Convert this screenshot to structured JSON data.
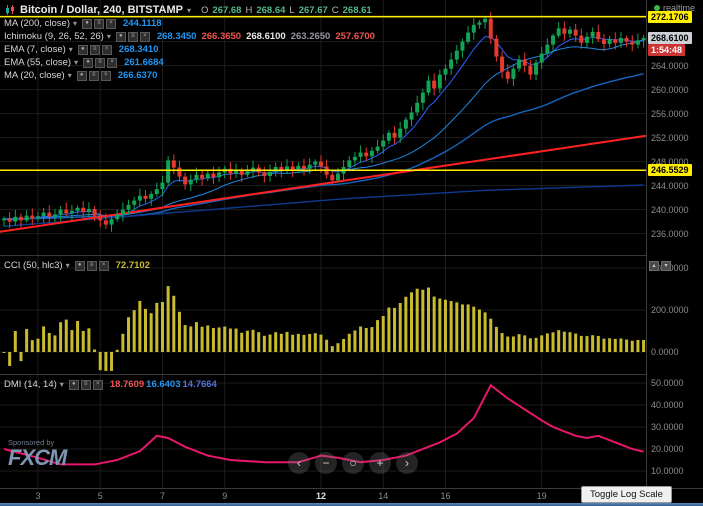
{
  "header": {
    "symbol_title": "Bitcoin / Dollar, 240, BITSTAMP",
    "ohlc": [
      {
        "label": "O",
        "value": "267.68"
      },
      {
        "label": "H",
        "value": "268.64"
      },
      {
        "label": "L",
        "value": "267.67"
      },
      {
        "label": "C",
        "value": "268.61"
      }
    ],
    "ohlc_value_color": "#53b987"
  },
  "realtime": {
    "label": "realtime",
    "dot_color": "#3cb44b"
  },
  "indicators": [
    {
      "name": "MA (200, close)",
      "values": [
        {
          "text": "244.1118",
          "color": "#2196f3"
        }
      ]
    },
    {
      "name": "Ichimoku (9, 26, 52, 26)",
      "values": [
        {
          "text": "268.3450",
          "color": "#2196f3"
        },
        {
          "text": "266.3650",
          "color": "#ef5350"
        },
        {
          "text": "268.6100",
          "color": "#e8e8e8"
        },
        {
          "text": "263.2650",
          "color": "#9598a1"
        },
        {
          "text": "257.6700",
          "color": "#ef5350"
        }
      ]
    },
    {
      "name": "EMA (7, close)",
      "values": [
        {
          "text": "268.3410",
          "color": "#2196f3"
        }
      ]
    },
    {
      "name": "EMA (55, close)",
      "values": [
        {
          "text": "261.6684",
          "color": "#2196f3"
        }
      ]
    },
    {
      "name": "MA (20, close)",
      "values": [
        {
          "text": "266.6370",
          "color": "#2196f3"
        }
      ]
    }
  ],
  "cci_legend": {
    "name": "CCI (50, hlc3)",
    "values": [
      {
        "text": "72.7102",
        "color": "#c8bb2e"
      }
    ]
  },
  "dmi_legend": {
    "name": "DMI (14, 14)",
    "values": [
      {
        "text": "18.7609",
        "color": "#ef5350"
      },
      {
        "text": "16.6403",
        "color": "#2196f3"
      },
      {
        "text": "14.7664",
        "color": "#5472d3"
      }
    ]
  },
  "legend_buttons": [
    {
      "name": "eye-icon",
      "icon": "eye"
    },
    {
      "name": "settings-icon",
      "icon": "gear"
    },
    {
      "name": "remove-icon",
      "icon": "close"
    }
  ],
  "icons": {
    "chevron_down": "▾",
    "eye": "●",
    "gear": "≡",
    "close": "×",
    "collapse": "▴",
    "expand": "▾",
    "nav_left": "‹",
    "nav_right": "›",
    "nav_minus": "−",
    "nav_plus": "+",
    "nav_reset": "○"
  },
  "controls": {
    "toggle_log_label": "Toggle Log Scale",
    "nav": [
      {
        "name": "scroll-left-button",
        "icon": "nav_left"
      },
      {
        "name": "zoom-out-button",
        "icon": "nav_minus"
      },
      {
        "name": "reset-view-button",
        "icon": "nav_reset"
      },
      {
        "name": "zoom-in-button",
        "icon": "nav_plus"
      },
      {
        "name": "scroll-right-button",
        "icon": "nav_right"
      }
    ],
    "panel_buttons": [
      {
        "name": "panel-collapse-button",
        "icon": "collapse"
      },
      {
        "name": "panel-expand-button",
        "icon": "expand"
      }
    ]
  },
  "sponsor": {
    "prefix": "Sponsored by",
    "brand": "FXCM"
  },
  "price_badges": [
    {
      "text": "272.1706",
      "price": 272.1706,
      "bg": "#ffee00",
      "fg": "#000000",
      "name": "upper-level-price-badge"
    },
    {
      "text": "268.6100",
      "price": 268.61,
      "bg": "#ccd0d6",
      "fg": "#000000",
      "name": "last-price-badge"
    },
    {
      "text": "1:54:48",
      "price": 266.52,
      "bg": "#cc3333",
      "fg": "#ffffff",
      "name": "bar-countdown-badge"
    },
    {
      "text": "246.5529",
      "price": 246.5529,
      "bg": "#ffee00",
      "fg": "#000000",
      "name": "lower-level-price-badge"
    }
  ],
  "chart_data": {
    "type": "candlestick_multi_panel",
    "time_axis": {
      "labels": [
        "3",
        "5",
        "7",
        "9",
        "12",
        "14",
        "16",
        "19"
      ],
      "bar_index": [
        6,
        17,
        28,
        39,
        56,
        67,
        78,
        95
      ],
      "highlight_label": "12"
    },
    "main_panel": {
      "type": "candlestick",
      "ylim": [
        233.27,
        273.6
      ],
      "grid_ticks": [
        236,
        240,
        244,
        248,
        252,
        256,
        260,
        264,
        268,
        272
      ],
      "label_ticks": [
        236,
        240,
        244,
        248,
        252,
        256,
        260,
        264
      ],
      "up_color": "#12a452",
      "down_color": "#e8392e",
      "first_open": 238.2,
      "closes": [
        238.5,
        238.0,
        238.8,
        238.2,
        239.0,
        238.6,
        238.9,
        239.5,
        238.8,
        239.2,
        240.0,
        239.4,
        239.8,
        240.3,
        239.6,
        240.1,
        239.0,
        238.2,
        237.5,
        238.4,
        239.2,
        240.0,
        240.8,
        241.5,
        242.3,
        241.8,
        242.6,
        243.4,
        244.5,
        248.2,
        247.0,
        245.5,
        244.2,
        245.0,
        245.8,
        245.2,
        246.0,
        245.4,
        246.2,
        246.8,
        246.0,
        246.6,
        245.8,
        246.4,
        247.0,
        246.2,
        245.6,
        246.3,
        247.1,
        246.5,
        247.2,
        246.6,
        247.3,
        246.8,
        247.5,
        248.0,
        247.2,
        245.8,
        244.9,
        246.0,
        247.1,
        248.2,
        248.8,
        249.5,
        248.9,
        249.8,
        250.5,
        251.5,
        252.8,
        252.0,
        253.5,
        255.0,
        256.2,
        257.8,
        259.5,
        261.5,
        260.2,
        262.5,
        263.5,
        265.0,
        266.5,
        268.0,
        269.5,
        270.8,
        271.2,
        271.8,
        268.5,
        265.5,
        263.0,
        261.8,
        263.5,
        265.0,
        264.0,
        262.5,
        264.5,
        266.0,
        267.5,
        269.0,
        270.2,
        269.3,
        270.0,
        269.0,
        267.8,
        268.8,
        269.6,
        268.4,
        267.6,
        268.4,
        267.8,
        268.6,
        268.0,
        267.5,
        268.2,
        268.61
      ],
      "high_overrides": {
        "29": 248.95,
        "85": 272.1706
      },
      "low_overrides": {
        "18": 236.8,
        "58": 244.2,
        "89": 261.0
      },
      "levels": [
        {
          "price": 272.1706,
          "color": "#ffee00"
        },
        {
          "price": 246.5529,
          "color": "#ffee00"
        }
      ],
      "last_price": {
        "value": 268.61,
        "countdown": "1:54:48"
      },
      "trend_line": {
        "start_price": 236.3,
        "end_price": 252.3,
        "color": "#ff2020"
      },
      "overlays": [
        {
          "name": "EMA (7)",
          "kind": "ema",
          "period": 7,
          "color": "#2962ff",
          "width": 1
        },
        {
          "name": "MA (20)",
          "kind": "sma",
          "period": 20,
          "color": "#1e88e5",
          "width": 1
        },
        {
          "name": "EMA (55)",
          "kind": "ema",
          "period": 55,
          "color": "#1565c0",
          "width": 1.4
        },
        {
          "name": "MA (200)",
          "kind": "points",
          "color": "#0d3a8f",
          "width": 1.4,
          "points": [
            [
              0,
              237.2
            ],
            [
              30,
              239.5
            ],
            [
              60,
              241.8
            ],
            [
              85,
              243.2
            ],
            [
              113,
              244.1
            ]
          ]
        }
      ]
    },
    "cci_panel": {
      "type": "histogram",
      "period": 50,
      "color": "#c8bb2e",
      "grid_ticks": [
        0,
        200,
        400
      ],
      "clamp": [
        -90,
        424
      ],
      "current": 72.7102
    },
    "dmi_panel": {
      "type": "line",
      "color": "#e8176b",
      "grid_ticks": [
        10,
        20,
        30,
        40,
        50
      ],
      "current": [
        18.7609,
        16.6403,
        14.7664
      ],
      "adx_keypoints": [
        [
          0,
          20
        ],
        [
          6,
          16
        ],
        [
          10,
          13
        ],
        [
          16,
          13
        ],
        [
          20,
          15
        ],
        [
          24,
          19
        ],
        [
          27,
          26
        ],
        [
          29,
          25
        ],
        [
          32,
          21
        ],
        [
          36,
          17
        ],
        [
          40,
          15
        ],
        [
          46,
          14
        ],
        [
          52,
          14
        ],
        [
          56,
          17
        ],
        [
          59,
          16
        ],
        [
          63,
          14
        ],
        [
          67,
          15
        ],
        [
          71,
          17
        ],
        [
          74,
          20
        ],
        [
          77,
          23
        ],
        [
          80,
          27
        ],
        [
          83,
          34
        ],
        [
          86,
          49
        ],
        [
          89,
          43
        ],
        [
          92,
          38
        ],
        [
          95,
          33
        ],
        [
          97,
          30
        ],
        [
          99,
          28
        ],
        [
          101,
          26
        ],
        [
          103,
          25
        ],
        [
          105,
          26
        ],
        [
          107,
          24
        ],
        [
          109,
          22
        ],
        [
          111,
          20
        ],
        [
          113,
          18.8
        ]
      ]
    }
  }
}
